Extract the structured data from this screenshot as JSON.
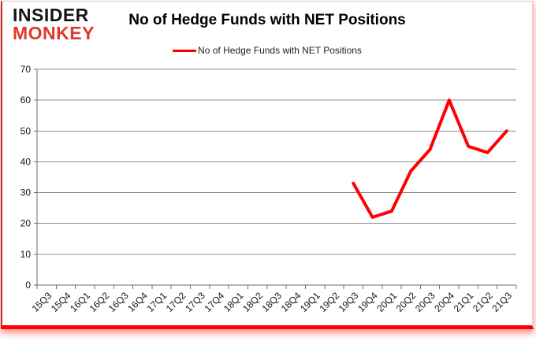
{
  "logo": {
    "top": "INSIDER",
    "bottom": "MONKEY",
    "top_color": "#161616",
    "bottom_color": "#e0392c"
  },
  "header": {
    "title": "No of Hedge Funds with NET Positions"
  },
  "legend": {
    "label": "No of Hedge Funds with NET Positions",
    "line_color": "#ff0000"
  },
  "colors": {
    "series_red": "#ff0000",
    "grid": "#8c8c8c",
    "axis": "#6e6e6e",
    "bottom_bar_red": "#ff0000"
  },
  "chart_data": {
    "type": "line",
    "title": "No of Hedge Funds with NET Positions",
    "categories": [
      "15Q3",
      "15Q4",
      "16Q1",
      "16Q2",
      "16Q3",
      "16Q4",
      "17Q1",
      "17Q2",
      "17Q3",
      "17Q4",
      "18Q1",
      "18Q2",
      "18Q3",
      "18Q4",
      "19Q1",
      "19Q2",
      "19Q3",
      "19Q4",
      "20Q1",
      "20Q2",
      "20Q3",
      "20Q4",
      "21Q1",
      "21Q2",
      "21Q3"
    ],
    "series": [
      {
        "name": "No of Hedge Funds with NET Positions",
        "color": "#ff0000",
        "values": [
          null,
          null,
          null,
          null,
          null,
          null,
          null,
          null,
          null,
          null,
          null,
          null,
          null,
          null,
          null,
          null,
          33,
          22,
          24,
          37,
          44,
          60,
          45,
          43,
          50
        ]
      }
    ],
    "ylim": [
      0,
      70
    ],
    "ytick_step": 10,
    "grid": true,
    "legend_position": "top-center",
    "xlabel": "",
    "ylabel": ""
  }
}
